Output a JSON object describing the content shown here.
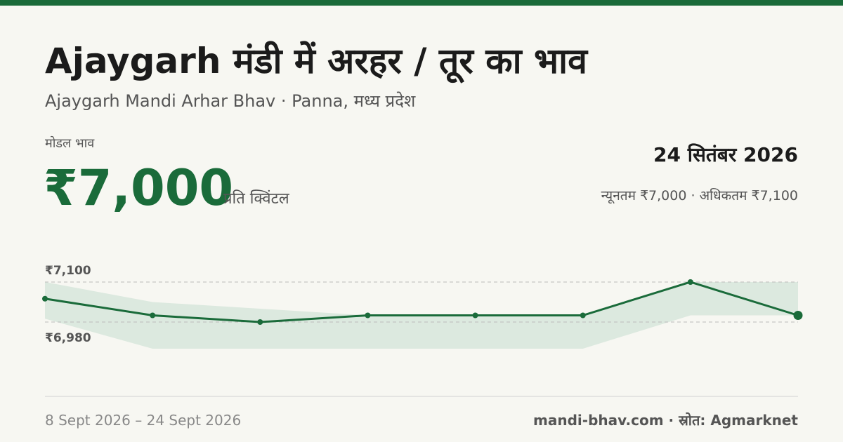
{
  "header": {
    "title": "Ajaygarh मंडी में अरहर / तूर का भाव",
    "subtitle": "Ajaygarh Mandi Arhar Bhav · Panna, मध्य प्रदेश"
  },
  "price": {
    "label": "मोडल भाव",
    "value": "₹7,000",
    "unit": "प्रति क्विंटल",
    "date": "24 सितंबर 2026",
    "range": "न्यूनतम ₹7,000 · अधिकतम ₹7,100"
  },
  "chart_data": {
    "type": "line",
    "categories": [
      null,
      null,
      null,
      null,
      null,
      null,
      null,
      null
    ],
    "series": [
      {
        "color": "#1a6b3a",
        "values": [
          7050,
          7000,
          6980,
          7000,
          7000,
          7000,
          7100,
          7000
        ]
      }
    ],
    "band": {
      "color": "#dce9df",
      "high": [
        7100,
        7040,
        7020,
        7000,
        7000,
        7000,
        7100,
        7100
      ],
      "low": [
        6990,
        6900,
        6900,
        6900,
        6900,
        6900,
        7000,
        7000
      ]
    },
    "ylim": [
      6850,
      7150
    ],
    "yticks": [
      {
        "value": 6980,
        "label": "₹6,980"
      },
      {
        "value": 7100,
        "label": "₹7,100"
      }
    ],
    "grid": true
  },
  "footer": {
    "period": "8 Sept 2026 – 24 Sept 2026",
    "source": "mandi-bhav.com · स्रोत: Agmarknet"
  }
}
